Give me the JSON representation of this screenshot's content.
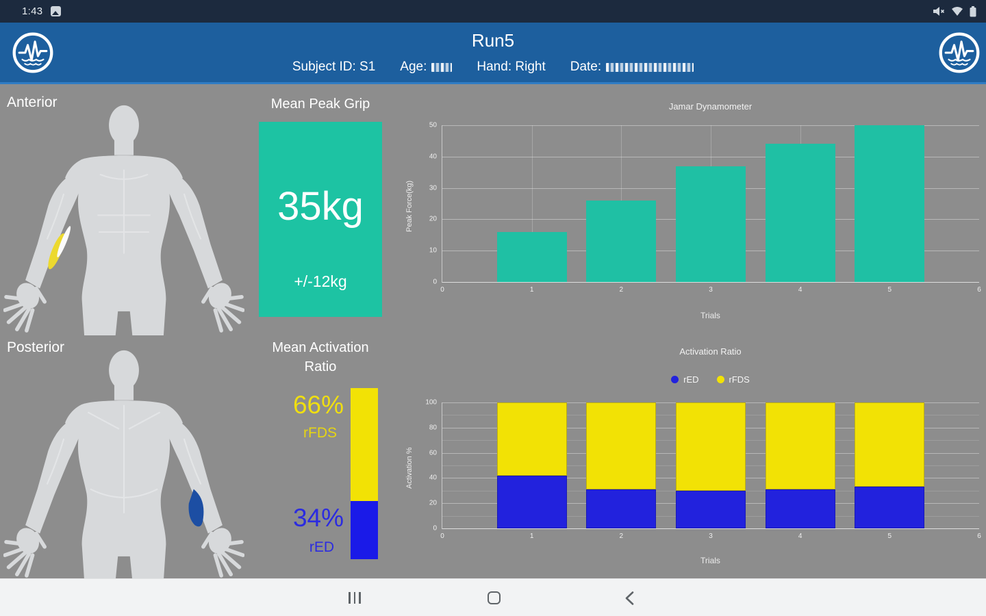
{
  "status_bar": {
    "time": "1:43",
    "left_icons": [
      "image-notification-icon"
    ],
    "right_icons": [
      "mute-icon",
      "wifi-icon",
      "battery-icon"
    ]
  },
  "header": {
    "title": "Run5",
    "subject_id_label": "Subject ID: S1",
    "age_label": "Age:",
    "hand_label": "Hand: Right",
    "date_label": "Date:",
    "background_color": "#1d5f9e",
    "logo": "emg-waveform-logo"
  },
  "body_maps": {
    "anterior_label": "Anterior",
    "posterior_label": "Posterior",
    "anterior_highlight_color": "#ecd92f",
    "posterior_highlight_color": "#1c4ea3"
  },
  "grip": {
    "title": "Mean Peak Grip",
    "value": "35kg",
    "deviation": "+/-12kg",
    "box_color": "#1dc3a3"
  },
  "activation": {
    "title_line1": "Mean Activation",
    "title_line2": "Ratio",
    "rfds_pct": "66%",
    "rfds_label": "rFDS",
    "rfds_value": 66,
    "rfds_color": "#f2e205",
    "red_pct": "34%",
    "red_label": "rED",
    "red_value": 34,
    "red_color": "#1a1ae8"
  },
  "nav_bar": {
    "icons": [
      "recents-icon",
      "home-icon",
      "back-icon"
    ]
  },
  "chart_data": [
    {
      "type": "bar",
      "title": "Jamar Dynamometer",
      "xlabel": "Trials",
      "ylabel": "Peak Force(kg)",
      "categories": [
        1,
        2,
        3,
        4,
        5
      ],
      "values": [
        16,
        26,
        37,
        44,
        50
      ],
      "bar_color": "#1fc0a4",
      "xlim": [
        0,
        6
      ],
      "ylim": [
        0,
        50
      ],
      "yticks": [
        0,
        10,
        20,
        30,
        40,
        50
      ],
      "xticks": [
        0,
        1,
        2,
        3,
        4,
        5,
        6
      ],
      "bar_width_x": 0.78,
      "grid": true,
      "legend": null
    },
    {
      "type": "stacked-bar",
      "title": "Activation Ratio",
      "xlabel": "Trials",
      "ylabel": "Activation %",
      "categories": [
        1,
        2,
        3,
        4,
        5
      ],
      "series": [
        {
          "name": "rED",
          "color": "#2222dd",
          "values": [
            42,
            31,
            30,
            31,
            33
          ]
        },
        {
          "name": "rFDS",
          "color": "#f2e205",
          "values": [
            58,
            69,
            70,
            69,
            67
          ]
        }
      ],
      "xlim": [
        0,
        6
      ],
      "ylim": [
        0,
        100
      ],
      "yticks": [
        0,
        20,
        40,
        60,
        80,
        100
      ],
      "yticks_minor": [
        10,
        30,
        50,
        70,
        90
      ],
      "xticks": [
        0,
        1,
        2,
        3,
        4,
        5,
        6
      ],
      "bar_width_x": 0.78,
      "grid": true,
      "legend_position": "top"
    }
  ]
}
